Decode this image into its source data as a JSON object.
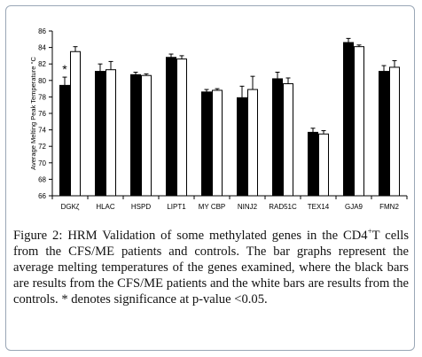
{
  "chart_data": {
    "type": "bar",
    "ylabel": "Average Melting Peak Temperature °C",
    "ylim": [
      66,
      86
    ],
    "yticks": [
      66,
      68,
      70,
      72,
      74,
      76,
      78,
      80,
      82,
      84,
      86
    ],
    "categories": [
      "DGKζ",
      "HLAC",
      "HSPD",
      "LIPT1",
      "MY CBP",
      "NINJ2",
      "RAD51C",
      "TEX14",
      "GJA9",
      "FMN2"
    ],
    "series": [
      {
        "values": [
          79.4,
          81.1,
          80.7,
          82.8,
          78.6,
          77.9,
          80.2,
          73.7,
          84.6,
          81.1
        ],
        "errors": [
          1.0,
          0.9,
          0.3,
          0.4,
          0.3,
          1.4,
          0.8,
          0.5,
          0.5,
          0.7
        ],
        "color": "#000000"
      },
      {
        "values": [
          83.5,
          81.3,
          80.6,
          82.6,
          78.8,
          78.9,
          79.6,
          73.5,
          84.1,
          81.6
        ],
        "errors": [
          0.6,
          1.0,
          0.2,
          0.4,
          0.2,
          1.6,
          0.7,
          0.4,
          0.2,
          0.8
        ],
        "color": "#ffffff"
      }
    ],
    "annotations": [
      {
        "category": "DGKζ",
        "text": "*"
      }
    ],
    "grid": false,
    "legend": "none"
  },
  "caption": {
    "before_sup": "Figure 2: HRM Validation of some methylated genes in the CD4",
    "sup": "+",
    "after_sup": "T cells from the CFS/ME patients and controls. The bar graphs represent the average melting temperatures of the genes examined, where the black bars are results from the CFS/ME patients and the white bars are results from the controls. * denotes significance at p-value <0.05."
  }
}
